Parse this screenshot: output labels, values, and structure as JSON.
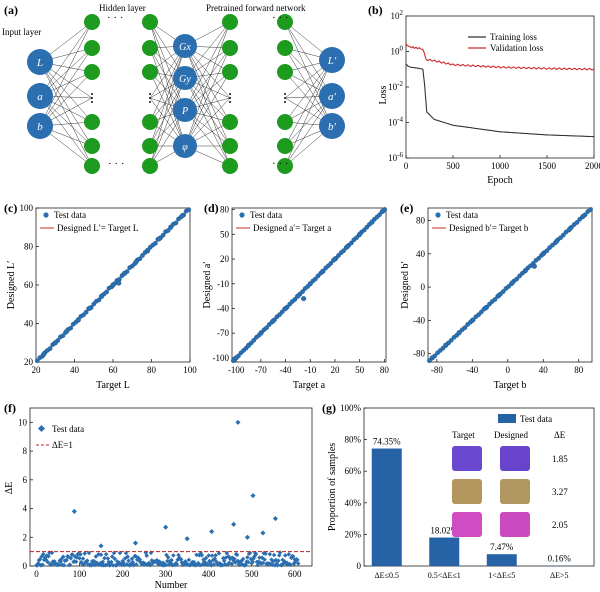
{
  "panels": {
    "a": "(a)",
    "b": "(b)",
    "c": "(c)",
    "d": "(d)",
    "e": "(e)",
    "f": "(f)",
    "g": "(g)"
  },
  "network": {
    "input_label": "Input layer",
    "hidden_label": "Hidden layer",
    "pretrained_label": "Pretrained forward network",
    "inputs": [
      "L",
      "a",
      "b"
    ],
    "middle": [
      "Gx",
      "Gy",
      "P",
      "φ"
    ],
    "outputs": [
      "L′",
      "a′",
      "b′"
    ],
    "ellipsis": "· · ·"
  },
  "loss": {
    "title": "Loss",
    "xlabel": "Epoch",
    "legend": [
      "Training loss",
      "Validation loss"
    ],
    "xticks": [
      "0",
      "500",
      "1000",
      "1500",
      "2000"
    ],
    "yticks": [
      {
        "base": "10",
        "exp": "2"
      },
      {
        "base": "10",
        "exp": "0"
      },
      {
        "base": "10",
        "exp": "-2"
      },
      {
        "base": "10",
        "exp": "-4"
      },
      {
        "base": "10",
        "exp": "-6"
      }
    ]
  },
  "scatter": {
    "legend_test": "Test data",
    "c": {
      "ylabel": "Designed L′",
      "xlabel": "Target L",
      "legend_line": "Designed L′= Target L",
      "xticks": [
        "20",
        "40",
        "60",
        "80",
        "100"
      ],
      "yticks": [
        "20",
        "40",
        "60",
        "80",
        "100"
      ]
    },
    "d": {
      "ylabel": "Designed a′",
      "xlabel": "Target a",
      "legend_line": "Designed a′= Target a",
      "xticks": [
        "-100",
        "-70",
        "-40",
        "-10",
        "20",
        "50",
        "80"
      ],
      "yticks": [
        "-100",
        "-70",
        "-40",
        "-10",
        "20",
        "50",
        "80"
      ]
    },
    "e": {
      "ylabel": "Designed b′",
      "xlabel": "Target b",
      "legend_line": "Designed b′= Target b",
      "xticks": [
        "-80",
        "-40",
        "0",
        "40",
        "80"
      ],
      "yticks": [
        "-80",
        "-40",
        "0",
        "40",
        "80"
      ]
    }
  },
  "deltaE": {
    "ylabel": "ΔE",
    "xlabel": "Number",
    "legend_test": "Test data",
    "legend_line": "ΔE=1",
    "xticks": [
      "0",
      "100",
      "200",
      "300",
      "400",
      "500",
      "600"
    ],
    "yticks": [
      "0",
      "2",
      "4",
      "6",
      "8",
      "10"
    ]
  },
  "colors": {
    "blue": "#2b6fb0",
    "green": "#1e9b1e",
    "red": "#cc2b2b",
    "gray": "#555555",
    "bar": "#2563a6"
  },
  "chart_data": [
    {
      "type": "line",
      "id": "b",
      "title": "",
      "xlabel": "Epoch",
      "ylabel": "Loss",
      "yscale": "log",
      "xlim": [
        0,
        2000
      ],
      "ylim": [
        1e-06,
        100
      ],
      "series": [
        {
          "name": "Training loss",
          "x": [
            0,
            20,
            50,
            100,
            150,
            180,
            200,
            220,
            300,
            500,
            1000,
            1500,
            2000
          ],
          "y": [
            0.2,
            0.15,
            0.13,
            0.12,
            0.11,
            0.1,
            0.01,
            0.0004,
            0.00015,
            7e-05,
            3e-05,
            2e-05,
            1.6e-05
          ]
        },
        {
          "name": "Validation loss",
          "x": [
            0,
            20,
            50,
            100,
            150,
            180,
            200,
            220,
            300,
            500,
            1000,
            1500,
            2000
          ],
          "y": [
            3,
            2,
            1.8,
            1.6,
            1.5,
            1.4,
            0.6,
            0.35,
            0.3,
            0.18,
            0.13,
            0.11,
            0.1
          ]
        }
      ]
    },
    {
      "type": "scatter",
      "id": "c",
      "xlabel": "Target L",
      "ylabel": "Designed L′",
      "xlim": [
        20,
        100
      ],
      "ylim": [
        20,
        100
      ],
      "series": [
        {
          "name": "Test data",
          "x": [
            24,
            30,
            36,
            42,
            48,
            54,
            60,
            63,
            66,
            72,
            78,
            84,
            90,
            96
          ],
          "y": [
            24,
            30,
            36,
            42,
            48,
            54,
            60,
            61,
            66,
            72,
            78,
            84,
            90,
            96
          ]
        }
      ]
    },
    {
      "type": "scatter",
      "id": "d",
      "xlabel": "Target a",
      "ylabel": "Designed a′",
      "xlim": [
        -105,
        82
      ],
      "ylim": [
        -105,
        82
      ],
      "series": [
        {
          "name": "Test data",
          "x": [
            -100,
            -85,
            -70,
            -55,
            -40,
            -25,
            -18,
            -10,
            5,
            20,
            35,
            50,
            65,
            78
          ],
          "y": [
            -100,
            -85,
            -70,
            -55,
            -40,
            -25,
            -28,
            -10,
            5,
            20,
            35,
            50,
            65,
            78
          ]
        }
      ]
    },
    {
      "type": "scatter",
      "id": "e",
      "xlabel": "Target b",
      "ylabel": "Designed b′",
      "xlim": [
        -90,
        95
      ],
      "ylim": [
        -90,
        95
      ],
      "series": [
        {
          "name": "Test data",
          "x": [
            -85,
            -70,
            -55,
            -40,
            -25,
            -10,
            5,
            20,
            30,
            40,
            55,
            70,
            85
          ],
          "y": [
            -85,
            -70,
            -55,
            -40,
            -25,
            -10,
            5,
            20,
            25,
            40,
            55,
            70,
            85
          ]
        }
      ]
    },
    {
      "type": "scatter",
      "id": "f",
      "xlabel": "Number",
      "ylabel": "ΔE",
      "xlim": [
        -15,
        640
      ],
      "ylim": [
        0,
        11
      ],
      "reference_line": 1,
      "outliers": [
        {
          "x": 88,
          "y": 3.8
        },
        {
          "x": 300,
          "y": 2.7
        },
        {
          "x": 407,
          "y": 2.4
        },
        {
          "x": 458,
          "y": 2.9
        },
        {
          "x": 468,
          "y": 10.0
        },
        {
          "x": 503,
          "y": 4.9
        },
        {
          "x": 526,
          "y": 2.3
        },
        {
          "x": 555,
          "y": 3.3
        },
        {
          "x": 230,
          "y": 1.6
        },
        {
          "x": 350,
          "y": 1.9
        },
        {
          "x": 490,
          "y": 2.0
        },
        {
          "x": 150,
          "y": 1.4
        }
      ]
    },
    {
      "type": "bar",
      "id": "g",
      "categories": [
        "ΔE≤0.5",
        "0.5<ΔE≤1",
        "1<ΔE≤5",
        "ΔE>5"
      ],
      "values": [
        74.35,
        18.02,
        7.47,
        0.16
      ],
      "value_labels": [
        "74.35%",
        "18.02%",
        "7.47%",
        "0.16%"
      ],
      "ylabel": "Proportion of samples",
      "ylim": [
        0,
        100
      ],
      "yticks": [
        "0",
        "20%",
        "40%",
        "60%",
        "80%",
        "100%"
      ],
      "legend": "Test data"
    }
  ],
  "inset": {
    "target": "Target",
    "designed": "Designed",
    "de": "ΔE",
    "rows": [
      {
        "target": "#6a48d0",
        "designed": "#6844cc",
        "value": "1.85"
      },
      {
        "target": "#b4975e",
        "designed": "#b09660",
        "value": "3.27"
      },
      {
        "target": "#d04cc2",
        "designed": "#cc4abf",
        "value": "2.05"
      }
    ]
  }
}
